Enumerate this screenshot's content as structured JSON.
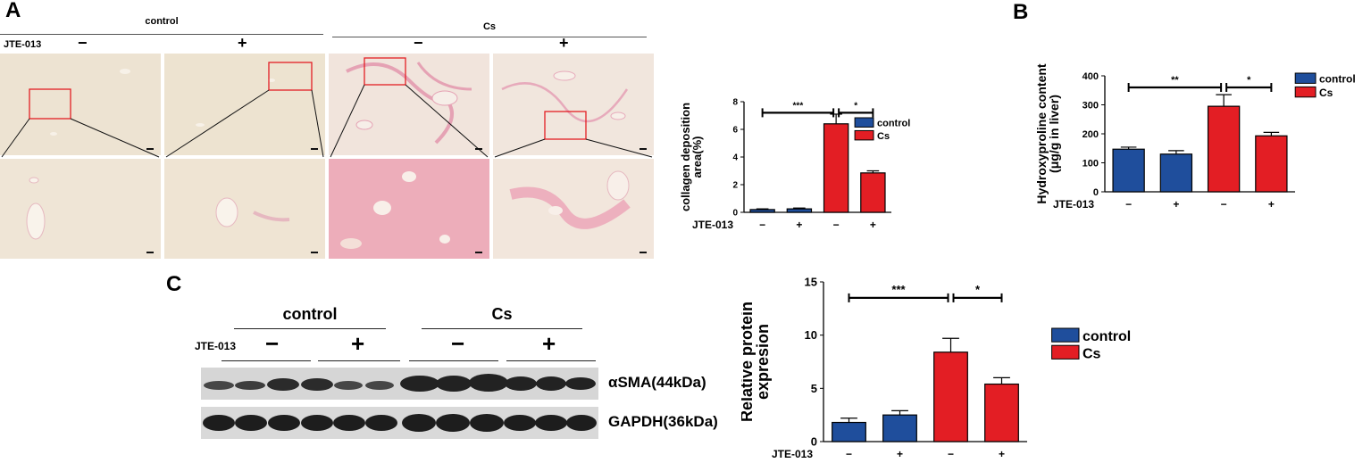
{
  "panel_a": {
    "letter": "A",
    "group_control": "control",
    "group_cs": "Cs",
    "treatment_label": "JTE-013",
    "signs": [
      "−",
      "+",
      "−",
      "+"
    ]
  },
  "panel_b": {
    "letter": "B"
  },
  "panel_c": {
    "letter": "C",
    "group_control": "control",
    "group_cs": "Cs",
    "treatment_label": "JTE-013",
    "signs": [
      "−",
      "+",
      "−",
      "+"
    ],
    "band1_label": "αSMA(44kDa)",
    "band2_label": "GAPDH(36kDa)"
  },
  "colors": {
    "control": "#1f4e9c",
    "cs": "#e31e24",
    "roi": "#e31e24"
  },
  "chart_data": [
    {
      "id": "chartA",
      "type": "bar",
      "ylabel": [
        "collagen deposition",
        "area(%)"
      ],
      "ylim": [
        0,
        8
      ],
      "yticks": [
        0,
        2,
        4,
        6,
        8
      ],
      "x_label": "JTE-013",
      "categories": [
        "−",
        "+",
        "−",
        "+"
      ],
      "series": [
        {
          "name": "control",
          "values": [
            0.2,
            0.25,
            null,
            null
          ],
          "errors": [
            0.05,
            0.06,
            null,
            null
          ]
        },
        {
          "name": "Cs",
          "values": [
            null,
            null,
            6.4,
            2.85
          ],
          "errors": [
            null,
            null,
            0.7,
            0.15
          ]
        }
      ],
      "significance": [
        {
          "from": 0,
          "to": 2,
          "label": "***"
        },
        {
          "from": 2,
          "to": 3,
          "label": "*"
        }
      ],
      "legend": "top-right"
    },
    {
      "id": "chartB",
      "type": "bar",
      "ylabel": [
        "Hydroxyproline content",
        "(μg/g in liver)"
      ],
      "ylim": [
        0,
        400
      ],
      "yticks": [
        0,
        100,
        200,
        300,
        400
      ],
      "x_label": "JTE-013",
      "categories": [
        "−",
        "+",
        "−",
        "+"
      ],
      "series": [
        {
          "name": "control",
          "values": [
            147,
            130,
            null,
            null
          ],
          "errors": [
            7,
            12,
            null,
            null
          ]
        },
        {
          "name": "Cs",
          "values": [
            null,
            null,
            295,
            193
          ],
          "errors": [
            null,
            null,
            40,
            12
          ]
        }
      ],
      "significance": [
        {
          "from": 0,
          "to": 2,
          "label": "**"
        },
        {
          "from": 2,
          "to": 3,
          "label": "*"
        }
      ],
      "legend": "top-right"
    },
    {
      "id": "chartC",
      "type": "bar",
      "ylabel": [
        "Relative protein",
        "expresion"
      ],
      "ylim": [
        0,
        15
      ],
      "yticks": [
        0,
        5,
        10,
        15
      ],
      "x_label": "JTE-013",
      "categories": [
        "−",
        "+",
        "−",
        "+"
      ],
      "series": [
        {
          "name": "control",
          "values": [
            1.8,
            2.5,
            null,
            null
          ],
          "errors": [
            0.4,
            0.4,
            null,
            null
          ]
        },
        {
          "name": "Cs",
          "values": [
            null,
            null,
            8.4,
            5.4
          ],
          "errors": [
            null,
            null,
            1.3,
            0.6
          ]
        }
      ],
      "significance": [
        {
          "from": 0,
          "to": 2,
          "label": "***"
        },
        {
          "from": 2,
          "to": 3,
          "label": "*"
        }
      ],
      "legend": "top-right"
    }
  ]
}
